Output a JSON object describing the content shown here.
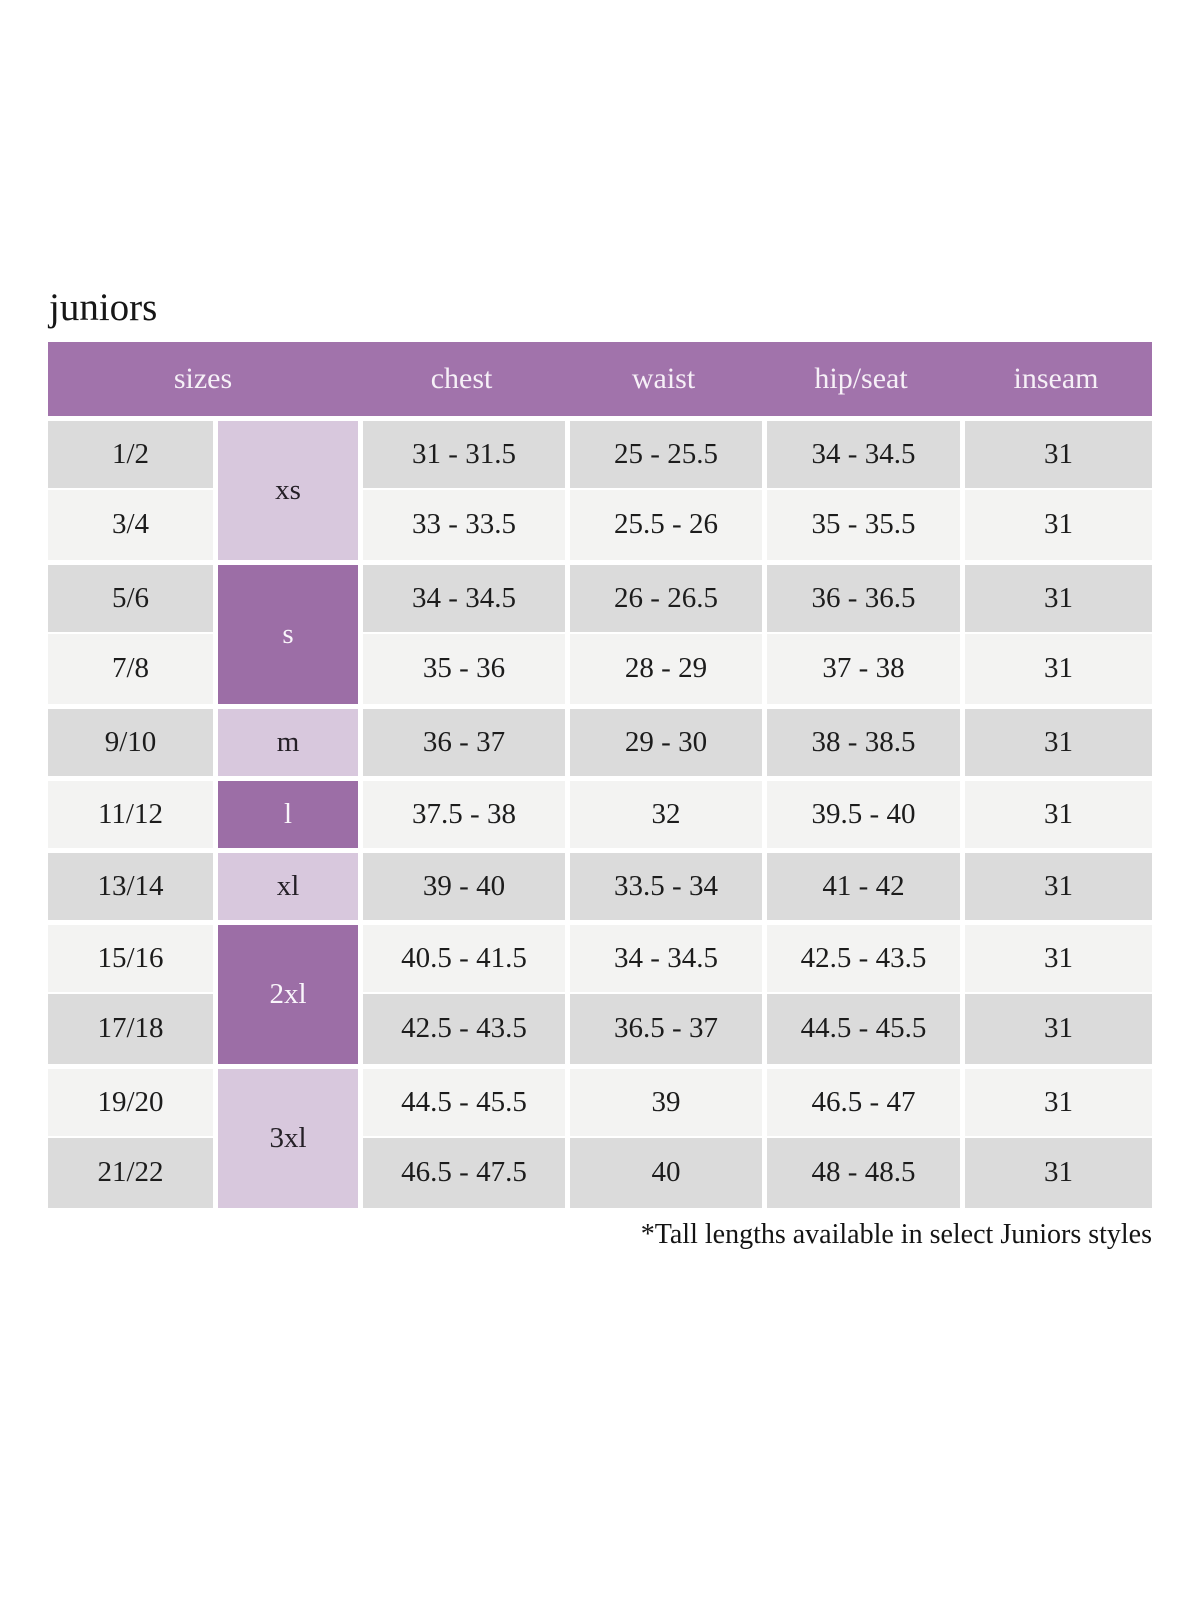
{
  "page": {
    "title": "juniors",
    "footnote": "*Tall lengths available in select Juniors styles"
  },
  "colors": {
    "header_bg": "#a173ab",
    "letter_dark": "#9c6ea6",
    "letter_light": "#d8c8dd",
    "row_gray": "#dbdbdb",
    "row_light": "#f3f3f2",
    "header_text": "#f6f0f7",
    "body_text": "#1c1c1c"
  },
  "table": {
    "headers": [
      "sizes",
      "chest",
      "waist",
      "hip/seat",
      "inseam"
    ],
    "groups": [
      {
        "label": "xs",
        "shade": "light",
        "rows": [
          {
            "size": "1/2",
            "chest": "31 - 31.5",
            "waist": "25 - 25.5",
            "hip_seat": "34 - 34.5",
            "inseam": "31"
          },
          {
            "size": "3/4",
            "chest": "33 - 33.5",
            "waist": "25.5 - 26",
            "hip_seat": "35 - 35.5",
            "inseam": "31"
          }
        ]
      },
      {
        "label": "s",
        "shade": "dark",
        "rows": [
          {
            "size": "5/6",
            "chest": "34 - 34.5",
            "waist": "26 - 26.5",
            "hip_seat": "36 - 36.5",
            "inseam": "31"
          },
          {
            "size": "7/8",
            "chest": "35 - 36",
            "waist": "28 - 29",
            "hip_seat": "37 - 38",
            "inseam": "31"
          }
        ]
      },
      {
        "label": "m",
        "shade": "light",
        "rows": [
          {
            "size": "9/10",
            "chest": "36 - 37",
            "waist": "29 - 30",
            "hip_seat": "38 - 38.5",
            "inseam": "31"
          }
        ]
      },
      {
        "label": "l",
        "shade": "dark",
        "rows": [
          {
            "size": "11/12",
            "chest": "37.5 - 38",
            "waist": "32",
            "hip_seat": "39.5 - 40",
            "inseam": "31"
          }
        ]
      },
      {
        "label": "xl",
        "shade": "light",
        "rows": [
          {
            "size": "13/14",
            "chest": "39 - 40",
            "waist": "33.5 - 34",
            "hip_seat": "41 - 42",
            "inseam": "31"
          }
        ]
      },
      {
        "label": "2xl",
        "shade": "dark",
        "rows": [
          {
            "size": "15/16",
            "chest": "40.5 - 41.5",
            "waist": "34 - 34.5",
            "hip_seat": "42.5 - 43.5",
            "inseam": "31"
          },
          {
            "size": "17/18",
            "chest": "42.5 - 43.5",
            "waist": "36.5 - 37",
            "hip_seat": "44.5 - 45.5",
            "inseam": "31"
          }
        ]
      },
      {
        "label": "3xl",
        "shade": "light",
        "rows": [
          {
            "size": "19/20",
            "chest": "44.5 - 45.5",
            "waist": "39",
            "hip_seat": "46.5 - 47",
            "inseam": "31"
          },
          {
            "size": "21/22",
            "chest": "46.5 - 47.5",
            "waist": "40",
            "hip_seat": "48 - 48.5",
            "inseam": "31"
          }
        ]
      }
    ]
  }
}
